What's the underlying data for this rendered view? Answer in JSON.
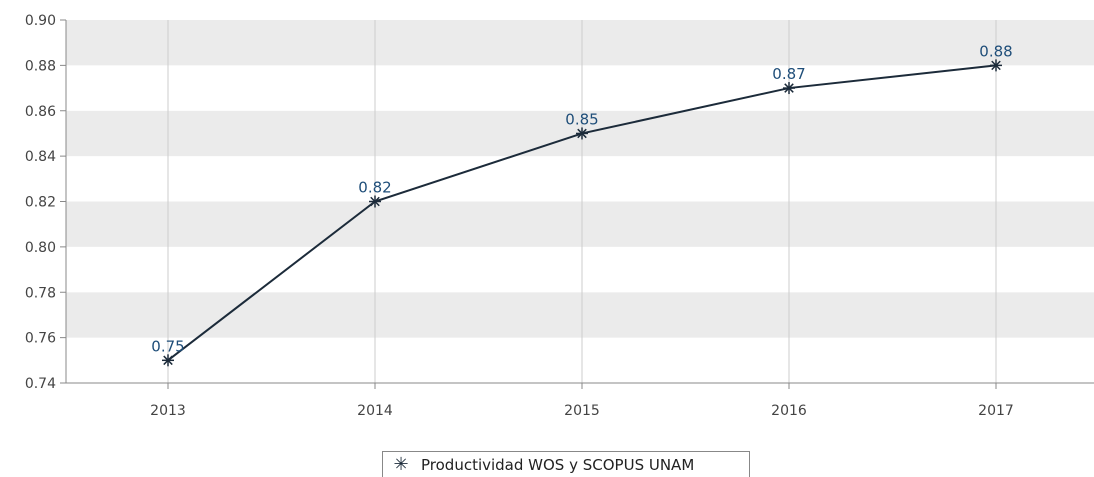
{
  "chart_data": {
    "type": "line",
    "categories": [
      "2013",
      "2014",
      "2015",
      "2016",
      "2017"
    ],
    "series": [
      {
        "name": "Productividad WOS y SCOPUS UNAM",
        "values": [
          0.75,
          0.82,
          0.85,
          0.87,
          0.88
        ]
      }
    ],
    "data_labels": [
      "0.75",
      "0.82",
      "0.85",
      "0.87",
      "0.88"
    ],
    "y_ticks": [
      "0.74",
      "0.76",
      "0.78",
      "0.80",
      "0.82",
      "0.84",
      "0.86",
      "0.88",
      "0.90"
    ],
    "ylim": [
      0.74,
      0.9
    ],
    "grid": true,
    "legend_position": "bottom-center",
    "marker": "asterisk",
    "colors": {
      "line": "#1c2b3a",
      "band": "#ebebeb",
      "label": "#1f4e79"
    }
  },
  "legend": {
    "label": "Productividad WOS y SCOPUS UNAM",
    "marker_glyph": "✳"
  }
}
